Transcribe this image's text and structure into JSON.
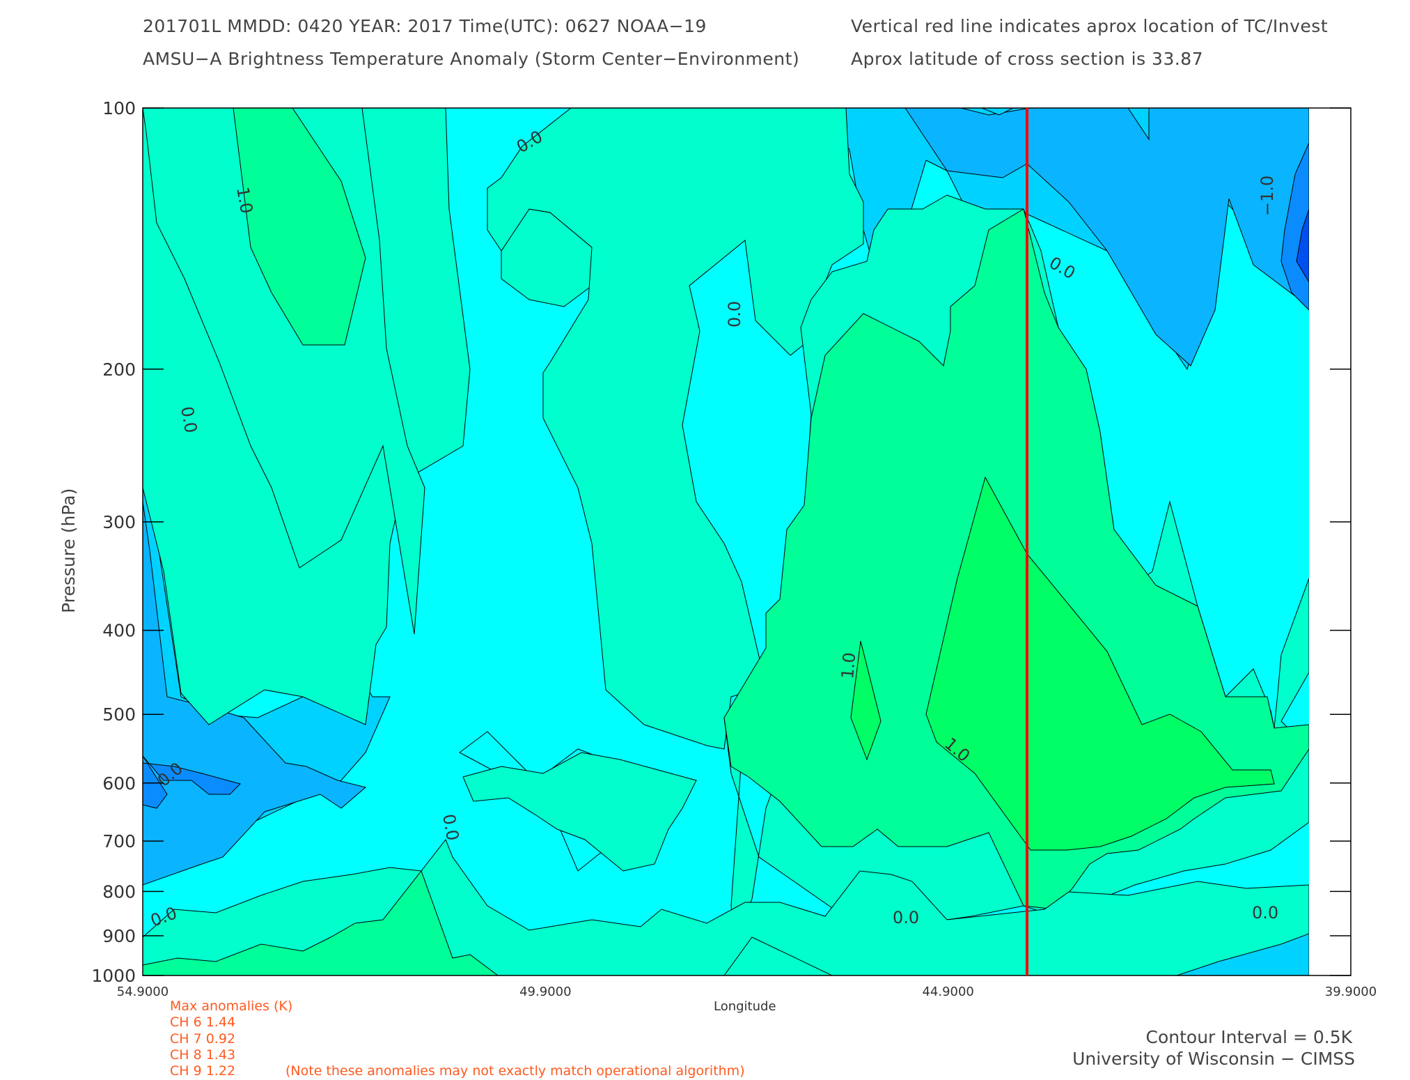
{
  "header": {
    "line1": "201701L  MMDD: 0420 YEAR: 2017 Time(UTC): 0627 NOAA−19",
    "line2": "AMSU−A Brightness Temperature Anomaly (Storm Center−Environment)",
    "note1": "Vertical red line indicates aprox location of TC/Invest",
    "note2": "Aprox latitude of cross section is 33.87"
  },
  "axes": {
    "ylabel": "Pressure (hPa)",
    "xlabel": "Longitude",
    "yticks": [
      "100",
      "200",
      "300",
      "400",
      "500",
      "600",
      "700",
      "800",
      "900",
      "1000"
    ],
    "xticks": [
      "54.9000",
      "49.9000",
      "44.9000",
      "39.9000"
    ]
  },
  "contour_labels": {
    "a": "1.0",
    "b": "0.0",
    "c": "0.0",
    "d": "0.0",
    "e": "0.0",
    "f": "1.0",
    "g": "1.0",
    "h": "0.0",
    "i": "0.0",
    "j": "0.0",
    "k": "0.0",
    "l": "0.0",
    "m": "−1.0"
  },
  "anomalies": {
    "title": "Max anomalies (K)",
    "ch6": "CH 6  1.44",
    "ch7": "CH 7  0.92",
    "ch8": "CH 8  1.43",
    "ch9": "CH 9  1.22",
    "note": "(Note these anomalies may not exactly match operational algorithm)"
  },
  "footer": {
    "interval": "Contour Interval = 0.5K",
    "credit": "University of Wisconsin − CIMSS"
  },
  "colors": {
    "level_m2": "#0050f0",
    "level_m15": "#0a8cff",
    "level_m1": "#0ab4ff",
    "level_m05": "#00d2ff",
    "level_0": "#00ffff",
    "level_05": "#00ffcc",
    "level_1": "#00ff99",
    "level_15": "#00ff66",
    "storm_line": "#ff0000"
  },
  "chart_data": {
    "type": "heatmap",
    "title": "AMSU−A Brightness Temperature Anomaly (Storm Center−Environment)",
    "xlabel": "Longitude",
    "ylabel": "Pressure (hPa)",
    "x_range": [
      54.9,
      39.9
    ],
    "y_range": [
      100,
      1000
    ],
    "y_scale": "log",
    "contour_interval_K": 0.5,
    "storm_longitude": 43.9,
    "cross_section_latitude": 33.87,
    "max_anomalies_K": {
      "CH 6": 1.44,
      "CH 7": 0.92,
      "CH 8": 1.43,
      "CH 9": 1.22
    },
    "approx_features": [
      {
        "longitude": 43.6,
        "pressure": 550,
        "anomaly": 1.5
      },
      {
        "longitude": 53.0,
        "pressure": 150,
        "anomaly": 1.0
      },
      {
        "longitude": 40.3,
        "pressure": 160,
        "anomaly": -1.5
      },
      {
        "longitude": 54.7,
        "pressure": 600,
        "anomaly": -1.0
      },
      {
        "longitude": 44.2,
        "pressure": 100,
        "anomaly": -0.5
      }
    ]
  }
}
